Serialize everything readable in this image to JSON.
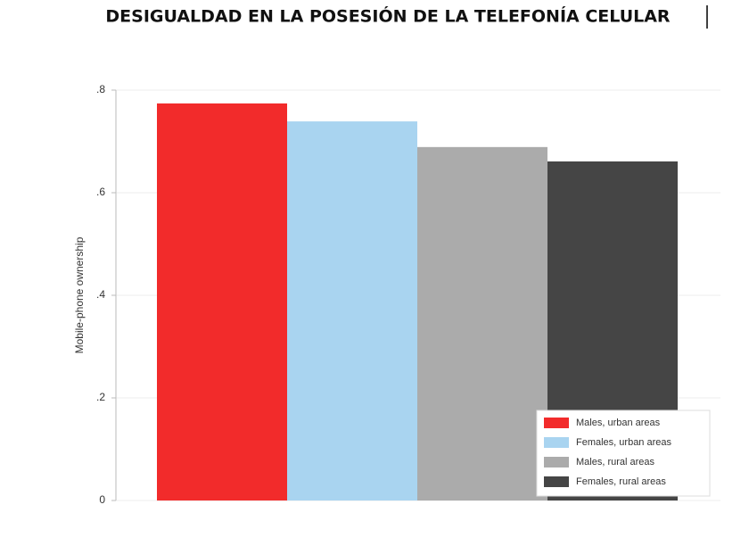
{
  "chart_data": {
    "type": "bar",
    "title": "DESIGUALDAD EN LA POSESIÓN DE LA TELEFONÍA CELULAR",
    "y_label": "Mobile-phone ownership",
    "categories": [
      null
    ],
    "series": [
      {
        "name": "Males, urban areas",
        "color": "#f22b2b",
        "values": [
          0.774
        ]
      },
      {
        "name": "Females, urban areas",
        "color": "#a9d4f0",
        "values": [
          0.739
        ]
      },
      {
        "name": "Males, rural areas",
        "color": "#ababab",
        "values": [
          0.689
        ]
      },
      {
        "name": "Females, rural areas",
        "color": "#454545",
        "values": [
          0.661
        ]
      }
    ],
    "ylim": [
      0,
      0.8
    ],
    "yticks": [
      0,
      {
        "value": 0.2,
        "label": ".2"
      },
      {
        "value": 0.4,
        "label": ".4"
      },
      {
        "value": 0.6,
        "label": ".6"
      },
      {
        "value": 0.8,
        "label": ".8"
      }
    ],
    "grid": true,
    "legend": "lower right"
  }
}
